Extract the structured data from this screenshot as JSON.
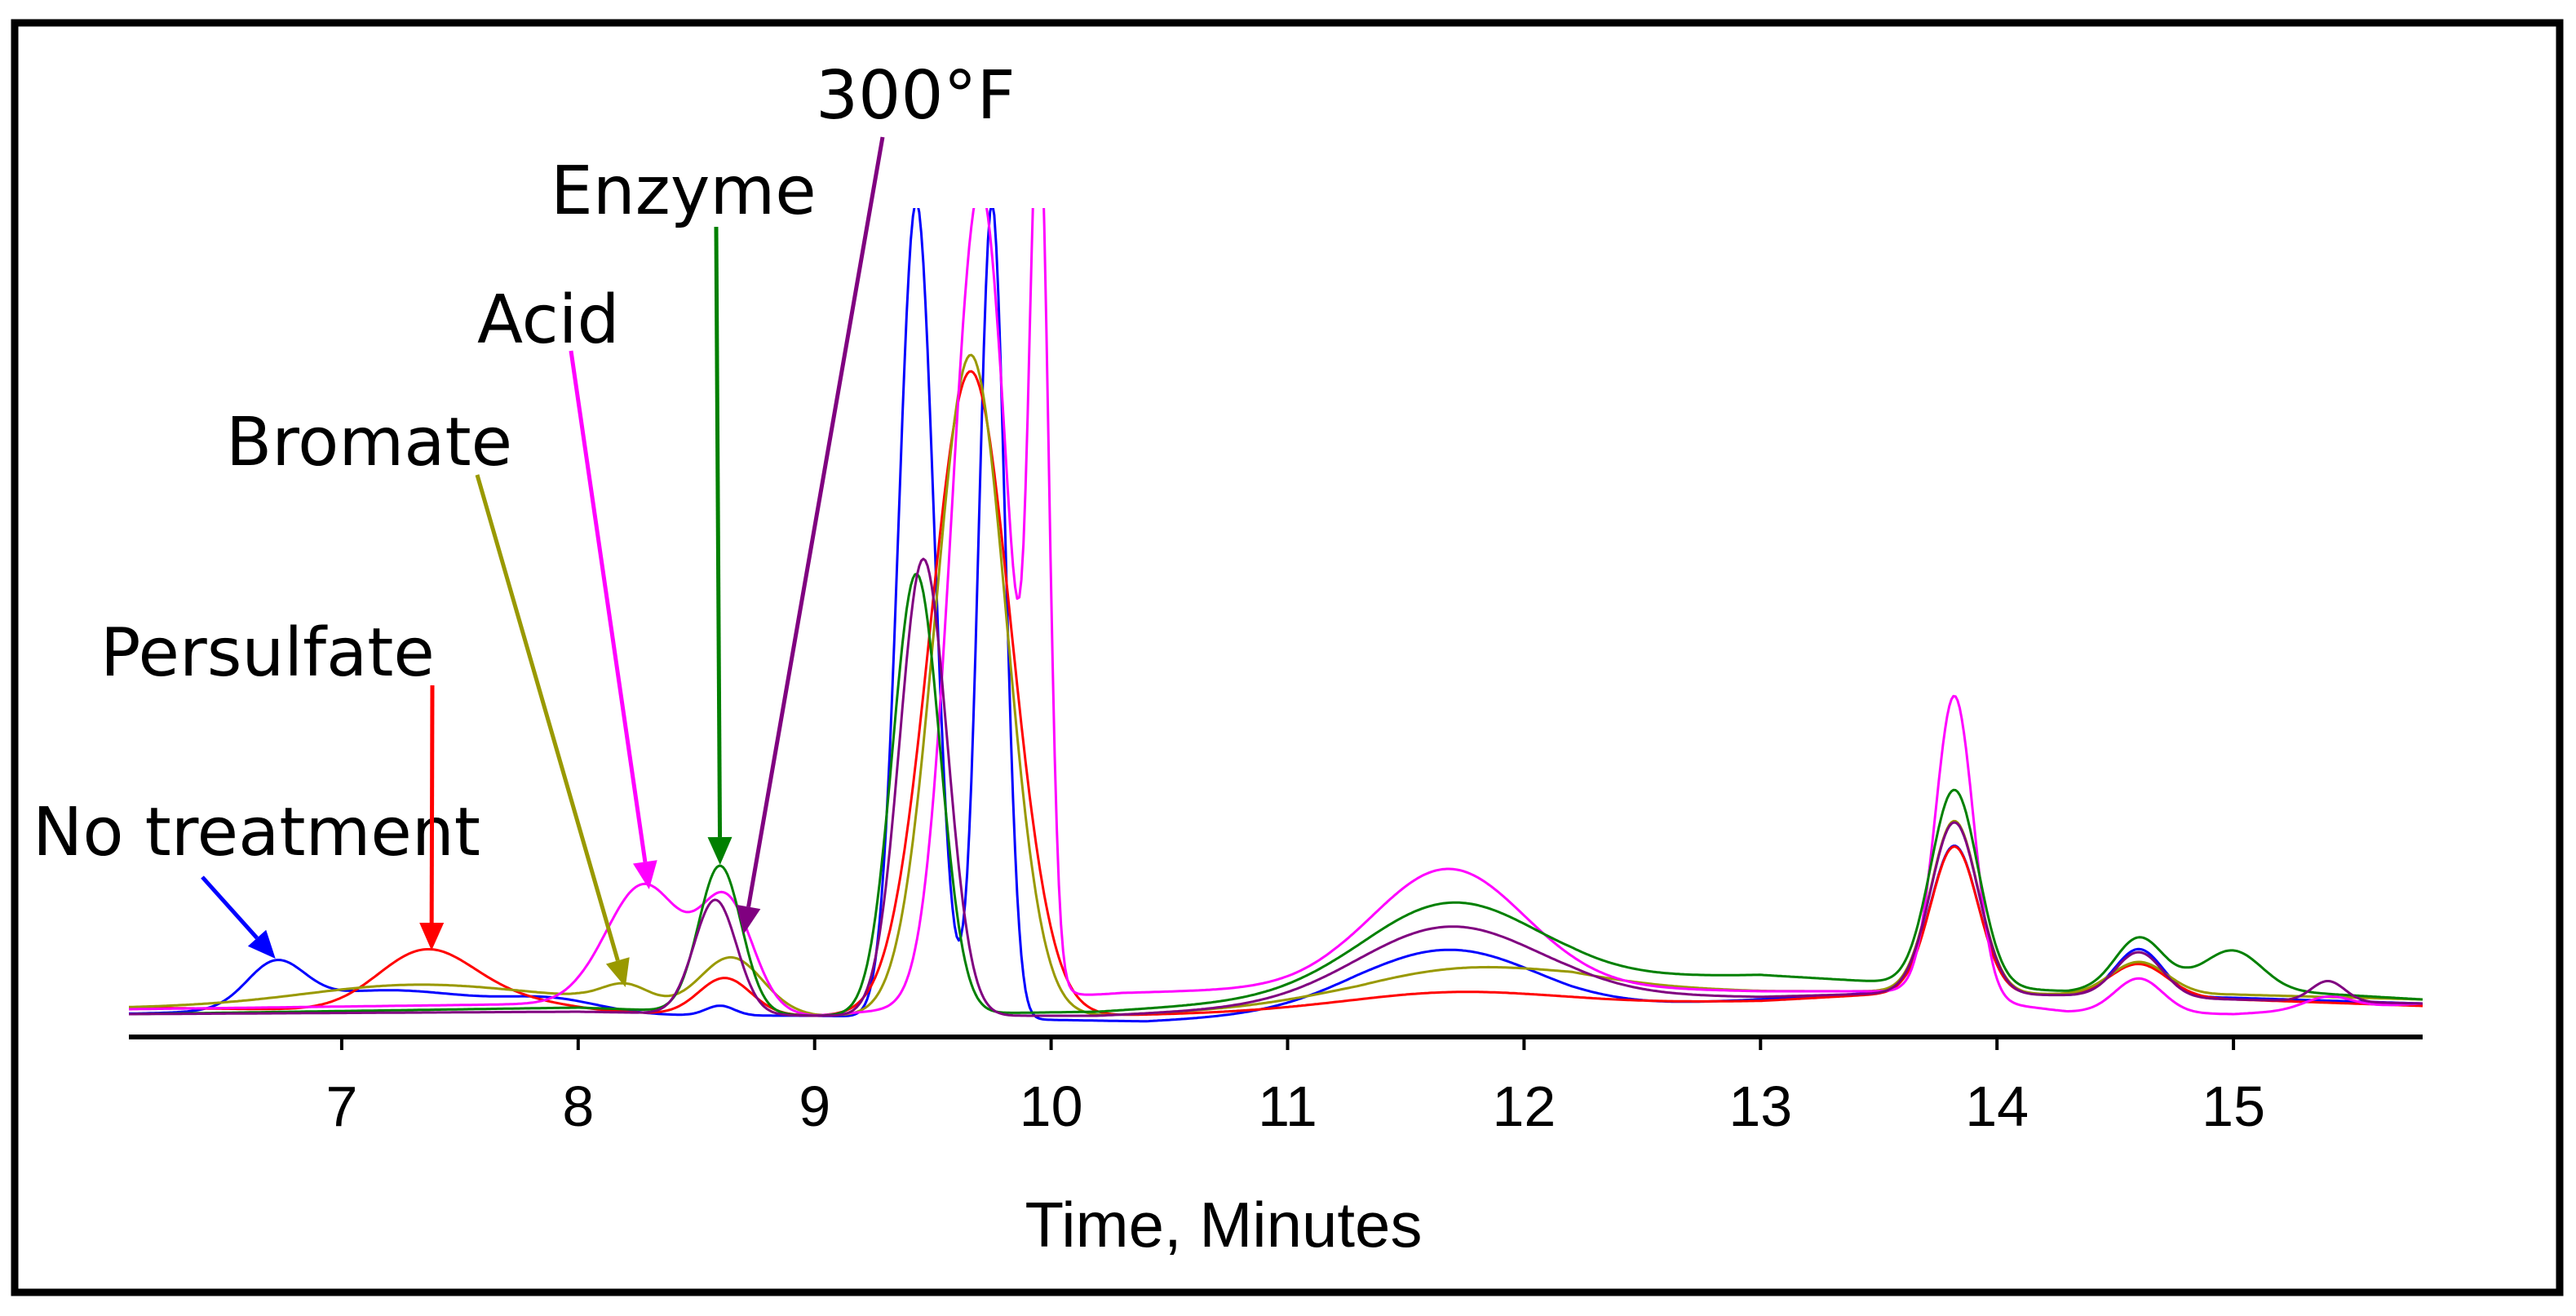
{
  "chart_data": {
    "type": "line",
    "title": "",
    "xlabel": "Time, Minutes",
    "ylabel": "",
    "xlim": [
      6.1,
      15.8
    ],
    "ylim": [
      0,
      100
    ],
    "x_ticks": [
      "7",
      "8",
      "9",
      "10",
      "11",
      "12",
      "13",
      "14",
      "15"
    ],
    "grid": false,
    "legend": "none",
    "series": [
      {
        "name": "No treatment",
        "color": "#0000ff",
        "baseline": [
          [
            6.1,
            1.2
          ],
          [
            9.0,
            1.0
          ],
          [
            10.4,
            0.3
          ],
          [
            11.3,
            1.5
          ],
          [
            12.2,
            1.7
          ],
          [
            13.0,
            3.0
          ],
          [
            13.6,
            4.0
          ],
          [
            14.3,
            3.5
          ],
          [
            15.0,
            3.2
          ],
          [
            15.8,
            2.5
          ]
        ],
        "peaks": [
          [
            6.72,
            5.2,
            0.12
          ],
          [
            7.2,
            3.0,
            0.4
          ],
          [
            7.9,
            1.5,
            0.2
          ],
          [
            8.6,
            1.2,
            0.06
          ],
          [
            9.43,
            100,
            0.075
          ],
          [
            9.75,
            100,
            0.055
          ],
          [
            11.68,
            7.5,
            0.38
          ],
          [
            13.82,
            18,
            0.1
          ],
          [
            14.6,
            5.8,
            0.1
          ]
        ]
      },
      {
        "name": "Persulfate",
        "color": "#ff0000",
        "baseline": [
          [
            6.1,
            2.0
          ],
          [
            9.0,
            1.0
          ],
          [
            10.2,
            1.0
          ],
          [
            11.3,
            1.6
          ],
          [
            12.2,
            2.3
          ],
          [
            13.0,
            2.8
          ],
          [
            13.6,
            3.8
          ],
          [
            14.3,
            3.6
          ],
          [
            15.0,
            3.0
          ],
          [
            15.8,
            2.2
          ]
        ],
        "peaks": [
          [
            7.35,
            7.0,
            0.2
          ],
          [
            7.7,
            1.5,
            0.25
          ],
          [
            8.62,
            4.5,
            0.11
          ],
          [
            9.66,
            79,
            0.17
          ],
          [
            11.68,
            2.0,
            0.45
          ],
          [
            13.82,
            18,
            0.1
          ],
          [
            14.6,
            4.0,
            0.12
          ]
        ]
      },
      {
        "name": "Bromate",
        "color": "#999900",
        "baseline": [
          [
            6.1,
            2.0
          ],
          [
            8.0,
            2.8
          ],
          [
            9.0,
            1.0
          ],
          [
            10.2,
            1.0
          ],
          [
            11.3,
            2.3
          ],
          [
            12.2,
            4.5
          ],
          [
            13.0,
            4.0
          ],
          [
            13.6,
            4.0
          ],
          [
            14.3,
            3.6
          ],
          [
            15.0,
            3.6
          ],
          [
            15.8,
            3.0
          ]
        ],
        "peaks": [
          [
            7.3,
            2.3,
            0.45
          ],
          [
            8.2,
            2.2,
            0.1
          ],
          [
            8.65,
            6.5,
            0.13
          ],
          [
            9.66,
            81,
            0.15
          ],
          [
            11.7,
            3.5,
            0.45
          ],
          [
            13.82,
            21,
            0.1
          ],
          [
            14.6,
            4.0,
            0.12
          ]
        ]
      },
      {
        "name": "Acid",
        "color": "#ff00ff",
        "baseline": [
          [
            6.1,
            1.8
          ],
          [
            8.0,
            2.5
          ],
          [
            9.0,
            1.0
          ],
          [
            9.9,
            3.0
          ],
          [
            10.3,
            3.8
          ],
          [
            11.2,
            4.5
          ],
          [
            12.2,
            4.5
          ],
          [
            13.0,
            4.0
          ],
          [
            13.6,
            4.0
          ],
          [
            14.3,
            1.5
          ],
          [
            15.0,
            1.2
          ],
          [
            15.8,
            2.5
          ]
        ],
        "peaks": [
          [
            8.28,
            15,
            0.16
          ],
          [
            8.63,
            13,
            0.11
          ],
          [
            9.7,
            100,
            0.12
          ],
          [
            9.95,
            100,
            0.04
          ],
          [
            11.68,
            14.5,
            0.32
          ],
          [
            13.82,
            37,
            0.08
          ],
          [
            14.6,
            4.2,
            0.1
          ],
          [
            15.4,
            1.5,
            0.1
          ]
        ]
      },
      {
        "name": "Enzyme",
        "color": "#008000",
        "baseline": [
          [
            6.1,
            1.2
          ],
          [
            8.0,
            2.0
          ],
          [
            9.0,
            1.0
          ],
          [
            10.2,
            1.5
          ],
          [
            11.3,
            3.5
          ],
          [
            12.2,
            5.5
          ],
          [
            13.0,
            6.0
          ],
          [
            13.6,
            5.0
          ],
          [
            14.3,
            4.0
          ],
          [
            14.8,
            5.0
          ],
          [
            15.2,
            4.0
          ],
          [
            15.8,
            3.0
          ]
        ],
        "peaks": [
          [
            8.6,
            18,
            0.09
          ],
          [
            9.43,
            54,
            0.1
          ],
          [
            11.68,
            10.5,
            0.37
          ],
          [
            13.82,
            24,
            0.1
          ],
          [
            14.6,
            6.0,
            0.1
          ],
          [
            15.0,
            4.5,
            0.12
          ]
        ]
      },
      {
        "name": "300°F",
        "color": "#800080",
        "baseline": [
          [
            6.1,
            1.2
          ],
          [
            8.0,
            1.5
          ],
          [
            9.0,
            1.0
          ],
          [
            10.2,
            1.0
          ],
          [
            11.3,
            2.5
          ],
          [
            12.2,
            3.5
          ],
          [
            13.0,
            3.3
          ],
          [
            13.6,
            3.8
          ],
          [
            14.3,
            3.5
          ],
          [
            15.0,
            3.0
          ],
          [
            15.8,
            2.5
          ]
        ],
        "peaks": [
          [
            8.58,
            14,
            0.09
          ],
          [
            9.46,
            56,
            0.1
          ],
          [
            11.68,
            9.0,
            0.38
          ],
          [
            13.82,
            21,
            0.1
          ],
          [
            14.6,
            5.5,
            0.1
          ],
          [
            15.4,
            2.5,
            0.07
          ]
        ]
      }
    ],
    "annotations": [
      {
        "label": "No treatment",
        "target_x": 6.72,
        "target_y": 8
      },
      {
        "label": "Persulfate",
        "target_x": 7.38,
        "target_y": 9
      },
      {
        "label": "Bromate",
        "target_x": 8.2,
        "target_y": 4.5
      },
      {
        "label": "Acid",
        "target_x": 8.3,
        "target_y": 16.5
      },
      {
        "label": "Enzyme",
        "target_x": 8.6,
        "target_y": 19.5
      },
      {
        "label": "300°F",
        "target_x": 8.7,
        "target_y": 11
      }
    ]
  }
}
